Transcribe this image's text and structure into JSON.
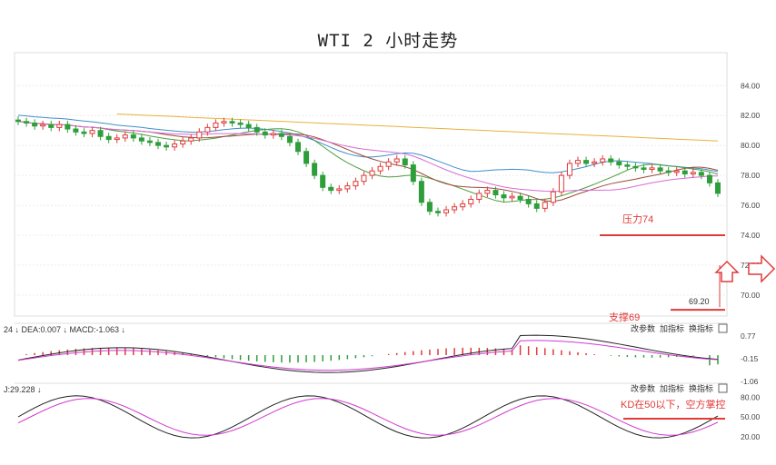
{
  "title": "WTI 2 小时走势",
  "chart_data": [
    {
      "type": "candlestick",
      "title": "WTI 2 小时走势",
      "y_ticks": [
        84.0,
        82.0,
        80.0,
        78.0,
        76.0,
        74.0,
        72.0,
        70.0
      ],
      "y_tick_labels": [
        "84.00",
        "82.00",
        "80.00",
        "78.00",
        "76.00",
        "74.00",
        "72.00",
        "70.00"
      ],
      "ylim": [
        68.6,
        86.2
      ],
      "grid": true,
      "closes": [
        81.6,
        81.5,
        81.3,
        81.4,
        81.2,
        81.4,
        81.1,
        80.9,
        80.8,
        81.0,
        80.6,
        80.4,
        80.5,
        80.7,
        80.5,
        80.3,
        80.2,
        80.0,
        79.9,
        80.1,
        80.3,
        80.5,
        80.9,
        81.2,
        81.5,
        81.6,
        81.5,
        81.4,
        81.2,
        80.9,
        80.7,
        80.8,
        80.6,
        80.2,
        79.6,
        78.8,
        78.0,
        77.2,
        77.0,
        77.1,
        77.3,
        77.6,
        78.0,
        78.3,
        78.6,
        78.9,
        79.1,
        78.7,
        77.6,
        76.2,
        75.6,
        75.5,
        75.7,
        75.9,
        76.1,
        76.4,
        76.8,
        77.0,
        76.7,
        76.5,
        76.6,
        76.4,
        76.1,
        75.8,
        76.2,
        76.9,
        78.0,
        78.8,
        79.0,
        78.8,
        78.9,
        79.1,
        78.9,
        78.7,
        78.6,
        78.5,
        78.4,
        78.5,
        78.3,
        78.2,
        78.3,
        78.1,
        78.2,
        78.0,
        77.5,
        76.8
      ],
      "moving_averages": [
        {
          "color": "#e8b13a",
          "values": [
            82.4,
            80.3
          ]
        },
        {
          "color": "#3f8fc9",
          "values": [
            82.3,
            78.5
          ]
        },
        {
          "color": "#4c9e3f",
          "values": [
            82.0,
            77.6
          ]
        },
        {
          "color": "#9c4a3a",
          "values": [
            82.6,
            78.1
          ]
        },
        {
          "color": "#d96ad6",
          "values": [
            81.5,
            78.3
          ]
        }
      ],
      "annotations": [
        {
          "text": "压力74",
          "y": 74.0,
          "color": "#e03a3a"
        },
        {
          "text": "支撑69",
          "y": 69.2,
          "color": "#e03a3a"
        },
        {
          "text": "69.20",
          "y": 69.2,
          "color": "#d08a2a"
        }
      ]
    },
    {
      "type": "macd",
      "header": "24 ↓ DEA:0.007 ↓ MACD:-1.063 ↓",
      "y_ticks": [
        0.77,
        -0.15,
        -1.06
      ],
      "y_tick_labels": [
        "0.77",
        "-0.15",
        "-1.06"
      ],
      "buttons": [
        "改参数",
        "加指标",
        "换指标"
      ]
    },
    {
      "type": "kd",
      "header": "J:29.228 ↓",
      "y_ticks": [
        80.0,
        50.0,
        20.0
      ],
      "y_tick_labels": [
        "80.00",
        "50.00",
        "20.00"
      ],
      "buttons": [
        "改参数",
        "加指标",
        "换指标"
      ],
      "annotation": "KD在50以下，空方掌控"
    }
  ]
}
